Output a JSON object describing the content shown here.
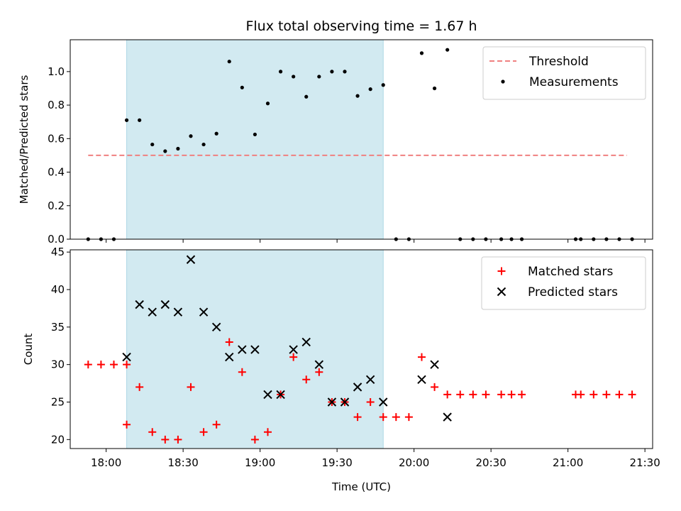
{
  "chart_data": [
    {
      "type": "scatter",
      "title": "Flux total observing time = 1.67 h",
      "ylabel": "Matched/Predicted stars",
      "xlim": [
        "17:46",
        "21:33"
      ],
      "ylim": [
        0,
        1.19
      ],
      "yticks": [
        "0.0",
        "0.2",
        "0.4",
        "0.6",
        "0.8",
        "1.0"
      ],
      "highlight_span": [
        "18:08",
        "19:48"
      ],
      "highlight_color": "#add8e6",
      "legend_position": "top-right",
      "threshold": {
        "name": "Threshold",
        "value": 0.5,
        "x_range": [
          "17:53",
          "21:23"
        ],
        "color": "#f08080"
      },
      "series": [
        {
          "name": "Measurements",
          "color": "#000000",
          "marker": "dot",
          "points": [
            [
              "17:53",
              0
            ],
            [
              "17:58",
              0
            ],
            [
              "18:03",
              0
            ],
            [
              "18:08",
              0.71
            ],
            [
              "18:13",
              0.71
            ],
            [
              "18:18",
              0.565
            ],
            [
              "18:23",
              0.525
            ],
            [
              "18:28",
              0.54
            ],
            [
              "18:33",
              0.615
            ],
            [
              "18:38",
              0.565
            ],
            [
              "18:43",
              0.63
            ],
            [
              "18:48",
              1.06
            ],
            [
              "18:53",
              0.905
            ],
            [
              "18:58",
              0.625
            ],
            [
              "19:03",
              0.81
            ],
            [
              "19:08",
              1.0
            ],
            [
              "19:13",
              0.97
            ],
            [
              "19:18",
              0.85
            ],
            [
              "19:23",
              0.97
            ],
            [
              "19:28",
              1.0
            ],
            [
              "19:33",
              1.0
            ],
            [
              "19:38",
              0.855
            ],
            [
              "19:43",
              0.895
            ],
            [
              "19:48",
              0.92
            ],
            [
              "19:53",
              0
            ],
            [
              "19:58",
              0
            ],
            [
              "20:03",
              1.11
            ],
            [
              "20:08",
              0.9
            ],
            [
              "20:13",
              1.13
            ],
            [
              "20:18",
              0
            ],
            [
              "20:23",
              0
            ],
            [
              "20:28",
              0
            ],
            [
              "20:34",
              0
            ],
            [
              "20:38",
              0
            ],
            [
              "20:42",
              0
            ],
            [
              "21:03",
              0
            ],
            [
              "21:05",
              0
            ],
            [
              "21:10",
              0
            ],
            [
              "21:15",
              0
            ],
            [
              "21:20",
              0
            ],
            [
              "21:25",
              0
            ]
          ]
        }
      ]
    },
    {
      "type": "scatter",
      "xlabel": "Time (UTC)",
      "ylabel": "Count",
      "xlim": [
        "17:46",
        "21:33"
      ],
      "xticks": [
        "18:00",
        "18:30",
        "19:00",
        "19:30",
        "20:00",
        "20:30",
        "21:00",
        "21:30"
      ],
      "ylim": [
        18.8,
        45.3
      ],
      "yticks": [
        "20",
        "25",
        "30",
        "35",
        "40",
        "45"
      ],
      "highlight_span": [
        "18:08",
        "19:48"
      ],
      "highlight_color": "#add8e6",
      "legend_position": "top-right",
      "series": [
        {
          "name": "Matched stars",
          "color": "#ff0000",
          "marker": "plus",
          "points": [
            [
              "17:53",
              30
            ],
            [
              "17:58",
              30
            ],
            [
              "18:03",
              30
            ],
            [
              "18:08",
              30
            ],
            [
              "18:08",
              22
            ],
            [
              "18:13",
              27
            ],
            [
              "18:18",
              21
            ],
            [
              "18:23",
              20
            ],
            [
              "18:28",
              20
            ],
            [
              "18:33",
              27
            ],
            [
              "18:38",
              21
            ],
            [
              "18:43",
              22
            ],
            [
              "18:48",
              33
            ],
            [
              "18:53",
              29
            ],
            [
              "18:58",
              20
            ],
            [
              "19:03",
              21
            ],
            [
              "19:08",
              26
            ],
            [
              "19:13",
              31
            ],
            [
              "19:18",
              28
            ],
            [
              "19:23",
              29
            ],
            [
              "19:28",
              25
            ],
            [
              "19:33",
              25
            ],
            [
              "19:38",
              23
            ],
            [
              "19:43",
              25
            ],
            [
              "19:48",
              23
            ],
            [
              "19:53",
              23
            ],
            [
              "19:58",
              23
            ],
            [
              "20:03",
              31
            ],
            [
              "20:08",
              27
            ],
            [
              "20:13",
              26
            ],
            [
              "20:18",
              26
            ],
            [
              "20:23",
              26
            ],
            [
              "20:28",
              26
            ],
            [
              "20:34",
              26
            ],
            [
              "20:38",
              26
            ],
            [
              "20:42",
              26
            ],
            [
              "21:03",
              26
            ],
            [
              "21:05",
              26
            ],
            [
              "21:10",
              26
            ],
            [
              "21:15",
              26
            ],
            [
              "21:20",
              26
            ],
            [
              "21:25",
              26
            ]
          ]
        },
        {
          "name": "Predicted stars",
          "color": "#000000",
          "marker": "x",
          "points": [
            [
              "18:08",
              31
            ],
            [
              "18:13",
              38
            ],
            [
              "18:18",
              37
            ],
            [
              "18:23",
              38
            ],
            [
              "18:28",
              37
            ],
            [
              "18:33",
              44
            ],
            [
              "18:38",
              37
            ],
            [
              "18:43",
              35
            ],
            [
              "18:48",
              31
            ],
            [
              "18:53",
              32
            ],
            [
              "18:58",
              32
            ],
            [
              "19:03",
              26
            ],
            [
              "19:08",
              26
            ],
            [
              "19:13",
              32
            ],
            [
              "19:18",
              33
            ],
            [
              "19:23",
              30
            ],
            [
              "19:28",
              25
            ],
            [
              "19:33",
              25
            ],
            [
              "19:38",
              27
            ],
            [
              "19:43",
              28
            ],
            [
              "19:48",
              25
            ],
            [
              "20:03",
              28
            ],
            [
              "20:08",
              30
            ],
            [
              "20:13",
              23
            ]
          ]
        }
      ]
    }
  ]
}
